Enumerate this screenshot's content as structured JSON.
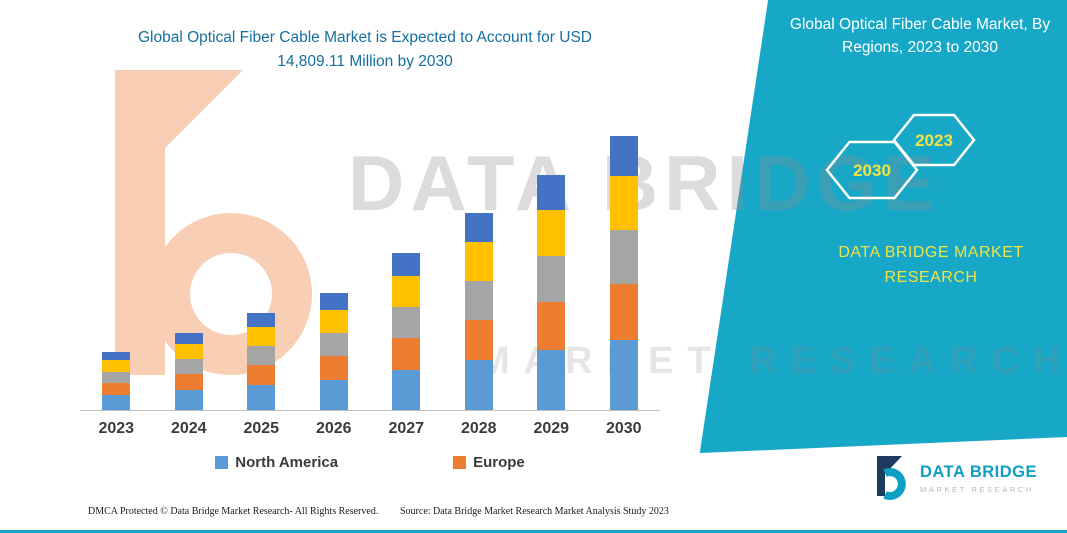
{
  "title": {
    "line1": "Global Optical Fiber Cable Market is Expected to Account for USD",
    "line2": "14,809.11 Million by 2030"
  },
  "side_panel": {
    "title": "Global Optical Fiber Cable Market, By Regions, 2023 to 2030",
    "hexagon_years": [
      "2030",
      "2023"
    ],
    "brand_line1": "DATA BRIDGE MARKET",
    "brand_line2": "RESEARCH",
    "background_color": "#17a7c7",
    "accent_text_color": "#f2e345"
  },
  "watermark": {
    "line1": "DATA BRIDGE",
    "line2": "MARKET RESEARCH"
  },
  "footer": {
    "dmca": "DMCA Protected © Data Bridge Market Research-  All Rights Reserved.",
    "source": "Source: Data Bridge Market Research  Market Analysis Study 2023"
  },
  "logo": {
    "name": "DATA BRIDGE",
    "subtitle": "MARKET RESEARCH"
  },
  "chart_data": {
    "type": "bar",
    "stacked": true,
    "title": "Global Optical Fiber Cable Market is Expected to Account for USD 14,809.11 Million by 2030",
    "categories": [
      "2023",
      "2024",
      "2025",
      "2026",
      "2027",
      "2028",
      "2029",
      "2030"
    ],
    "series": [
      {
        "name": "North America",
        "color": "#5B9BD5",
        "values": [
          811,
          1081,
          1351,
          1622,
          2162,
          2703,
          3243,
          3784
        ]
      },
      {
        "name": "Europe",
        "color": "#ED7D31",
        "values": [
          649,
          865,
          1081,
          1297,
          1730,
          2162,
          2595,
          3027
        ]
      },
      {
        "name": "unlabeled-gray",
        "color": "#A5A5A5",
        "values": [
          595,
          811,
          1027,
          1243,
          1676,
          2108,
          2487,
          2919
        ]
      },
      {
        "name": "unlabeled-yellow",
        "color": "#FFC000",
        "values": [
          649,
          811,
          1027,
          1243,
          1676,
          2108,
          2487,
          2919
        ]
      },
      {
        "name": "unlabeled-blue",
        "color": "#4472C4",
        "values": [
          432,
          595,
          757,
          919,
          1243,
          1568,
          1892,
          2162
        ]
      }
    ],
    "legend_visible": [
      "North America",
      "Europe"
    ],
    "legend_position": "bottom",
    "y_axis": "none shown",
    "units": "USD Million (estimated from bar heights; only the 2030 total USD 14,809.11 Million is stated)",
    "grid": false
  }
}
